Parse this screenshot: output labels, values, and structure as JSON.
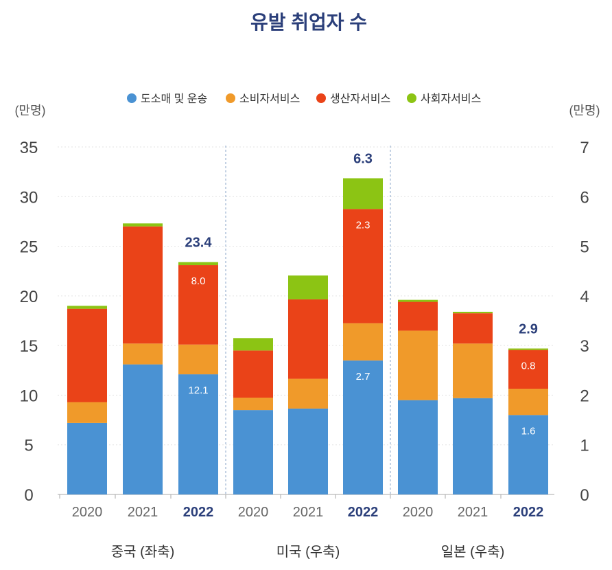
{
  "chart_data": {
    "type": "bar",
    "stacked": true,
    "title": "유발 취업자 수",
    "left_axis": {
      "unit_label": "(만명)",
      "ylim": [
        0,
        35
      ],
      "ticks": [
        0,
        5,
        10,
        15,
        20,
        25,
        30,
        35
      ]
    },
    "right_axis": {
      "unit_label": "(만명)",
      "ylim": [
        0,
        7
      ],
      "ticks": [
        0,
        1,
        2,
        3,
        4,
        5,
        6,
        7
      ]
    },
    "grid": true,
    "legend_position": "top",
    "series": [
      {
        "name": "도소매 및 운송",
        "color": "#4a92d3"
      },
      {
        "name": "소비자서비스",
        "color": "#f09a2a"
      },
      {
        "name": "생산자서비스",
        "color": "#ea4318"
      },
      {
        "name": "사회자서비스",
        "color": "#8cc414"
      }
    ],
    "groups": [
      {
        "label": "중국 (좌축)",
        "axis": "left",
        "bars": [
          {
            "year": "2020",
            "highlight": false,
            "values": [
              7.2,
              2.1,
              9.4,
              0.3
            ]
          },
          {
            "year": "2021",
            "highlight": false,
            "values": [
              13.1,
              2.1,
              11.8,
              0.3
            ]
          },
          {
            "year": "2022",
            "highlight": true,
            "values": [
              12.1,
              3.0,
              8.0,
              0.3
            ],
            "total_label": "23.4",
            "segment_labels": [
              "12.1",
              null,
              "8.0",
              null
            ]
          }
        ]
      },
      {
        "label": "미국 (우축)",
        "axis": "right",
        "bars": [
          {
            "year": "2020",
            "highlight": false,
            "values": [
              1.7,
              0.25,
              0.95,
              0.25
            ]
          },
          {
            "year": "2021",
            "highlight": false,
            "values": [
              1.73,
              0.6,
              1.6,
              0.48
            ]
          },
          {
            "year": "2022",
            "highlight": true,
            "values": [
              2.7,
              0.75,
              2.3,
              0.62
            ],
            "total_label": "6.3",
            "segment_labels": [
              "2.7",
              null,
              "2.3",
              null
            ]
          }
        ]
      },
      {
        "label": "일본 (우축)",
        "axis": "right",
        "bars": [
          {
            "year": "2020",
            "highlight": false,
            "values": [
              1.9,
              1.4,
              0.58,
              0.04
            ]
          },
          {
            "year": "2021",
            "highlight": false,
            "values": [
              1.94,
              1.1,
              0.61,
              0.03
            ]
          },
          {
            "year": "2022",
            "highlight": true,
            "values": [
              1.6,
              0.53,
              0.78,
              0.03
            ],
            "total_label": "2.9",
            "segment_labels": [
              "1.6",
              null,
              "0.8",
              null
            ]
          }
        ]
      }
    ]
  }
}
